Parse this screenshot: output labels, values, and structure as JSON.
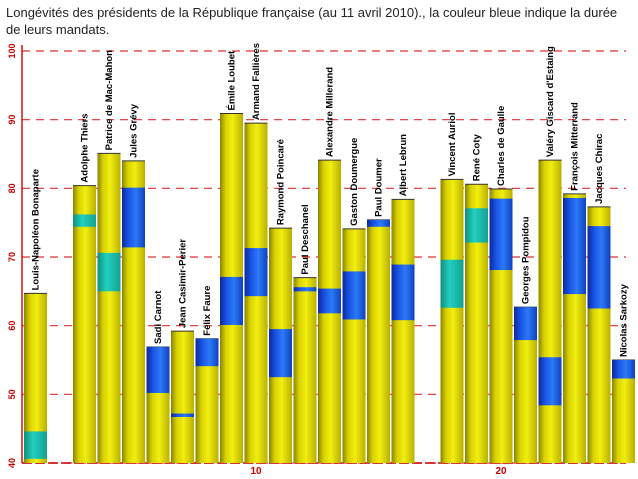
{
  "title": "Longévités des présidents de la République française (au 11 avril 2010)., la couleur bleue indique la durée de leurs mandats.",
  "chart_data": {
    "type": "bar",
    "ylim": [
      40,
      100
    ],
    "yticks": [
      40,
      50,
      60,
      70,
      80,
      90,
      100
    ],
    "xticks": [
      {
        "value": 10,
        "label": "10"
      },
      {
        "value": 20,
        "label": "20"
      }
    ],
    "grid": "dashed horizontal",
    "colors": {
      "life": "#e5e000",
      "mandate": "#1a5cf0",
      "mandate_alt": "#20c9c0",
      "axis": "#cc0000"
    },
    "presidents": [
      {
        "index": 1,
        "name": "Louis-Napoléon Bonaparte",
        "start": 40.6,
        "end": 44.6,
        "life": 64.7
      },
      {
        "index": 3,
        "name": "Adolphe Thiers",
        "start": 74.4,
        "end": 76.2,
        "life": 80.4
      },
      {
        "index": 4,
        "name": "Patrice de Mac-Mahon",
        "start": 65.0,
        "end": 70.6,
        "life": 85.1
      },
      {
        "index": 5,
        "name": "Jules Grévy",
        "start": 71.4,
        "end": 80.1,
        "life": 84.0
      },
      {
        "index": 6,
        "name": "Sadi Carnot",
        "start": 50.2,
        "end": 56.9,
        "life": 56.9
      },
      {
        "index": 7,
        "name": "Jean Casimir-Perier",
        "start": 46.7,
        "end": 47.2,
        "life": 59.2
      },
      {
        "index": 8,
        "name": "Félix Faure",
        "start": 54.1,
        "end": 58.1,
        "life": 58.1
      },
      {
        "index": 9,
        "name": "Émile Loubet",
        "start": 60.1,
        "end": 67.1,
        "life": 90.9
      },
      {
        "index": 10,
        "name": "Armand Fallières",
        "start": 64.3,
        "end": 71.3,
        "life": 89.5
      },
      {
        "index": 11,
        "name": "Raymond Poincaré",
        "start": 52.5,
        "end": 59.5,
        "life": 74.2
      },
      {
        "index": 12,
        "name": "Paul Deschanel",
        "start": 65.0,
        "end": 65.6,
        "life": 67.0
      },
      {
        "index": 13,
        "name": "Alexandre Millerand",
        "start": 61.8,
        "end": 65.4,
        "life": 84.1
      },
      {
        "index": 14,
        "name": "Gaston Doumergue",
        "start": 60.9,
        "end": 67.9,
        "life": 74.1
      },
      {
        "index": 15,
        "name": "Paul Doumer",
        "start": 74.4,
        "end": 75.4,
        "life": 75.4
      },
      {
        "index": 16,
        "name": "Albert Lebrun",
        "start": 60.8,
        "end": 68.9,
        "life": 78.4
      },
      {
        "index": 18,
        "name": "Vincent Auriol",
        "start": 62.6,
        "end": 69.6,
        "life": 81.3
      },
      {
        "index": 19,
        "name": "René Coty",
        "start": 72.1,
        "end": 77.1,
        "life": 80.6
      },
      {
        "index": 20,
        "name": "Charles de Gaulle",
        "start": 68.1,
        "end": 78.5,
        "life": 79.9
      },
      {
        "index": 21,
        "name": "Georges Pompidou",
        "start": 57.9,
        "end": 62.7,
        "life": 62.7
      },
      {
        "index": 22,
        "name": "Valéry Giscard d'Estaing",
        "start": 48.4,
        "end": 55.4,
        "life": 84.1
      },
      {
        "index": 23,
        "name": "François Mitterrand",
        "start": 64.6,
        "end": 78.6,
        "life": 79.2
      },
      {
        "index": 24,
        "name": "Jacques Chirac",
        "start": 62.5,
        "end": 74.5,
        "life": 77.3
      },
      {
        "index": 25,
        "name": "Nicolas Sarkozy",
        "start": 52.3,
        "end": 55.0,
        "life": 55.0
      }
    ]
  }
}
